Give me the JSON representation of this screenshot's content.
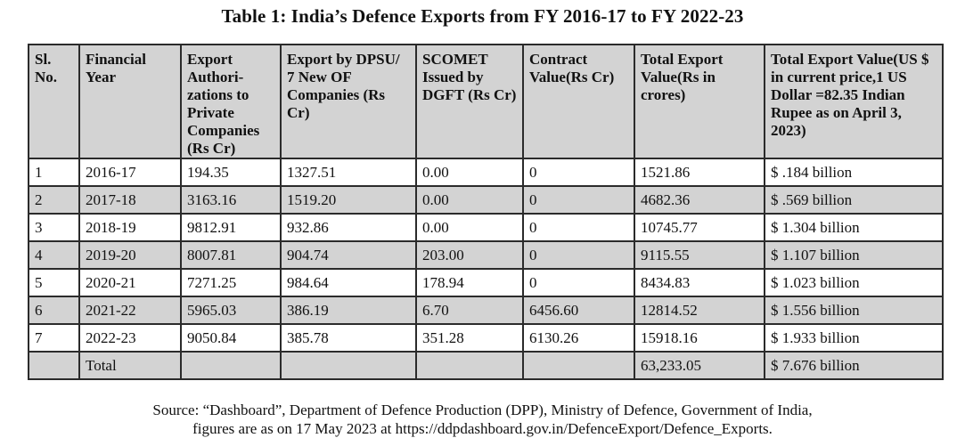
{
  "title": "Table 1: India’s Defence Exports from FY 2016-17 to FY 2022-23",
  "table": {
    "headers": [
      "Sl. No.",
      "Financial Year",
      "Export Authori-zations to Private Companies (Rs Cr)",
      "Export by DPSU/ 7 New OF Companies (Rs Cr)",
      "SCOMET Issued by DGFT (Rs Cr)",
      "Contract Value(Rs Cr)",
      "Total Export Value(Rs in crores)",
      "Total Export Value(US $ in current price,1 US Dollar =82.35 Indian Rupee as on April 3, 2023)"
    ],
    "rows": [
      [
        "1",
        "2016-17",
        "194.35",
        "1327.51",
        "0.00",
        "0",
        "1521.86",
        "$ .184 billion"
      ],
      [
        "2",
        "2017-18",
        "3163.16",
        "1519.20",
        "0.00",
        "0",
        "4682.36",
        "$ .569 billion"
      ],
      [
        "3",
        "2018-19",
        "9812.91",
        "932.86",
        "0.00",
        "0",
        "10745.77",
        "$ 1.304 billion"
      ],
      [
        "4",
        "2019-20",
        "8007.81",
        "904.74",
        "203.00",
        "0",
        "9115.55",
        "$ 1.107 billion"
      ],
      [
        "5",
        "2020-21",
        "7271.25",
        "984.64",
        "178.94",
        "0",
        "8434.83",
        "$ 1.023 billion"
      ],
      [
        "6",
        "2021-22",
        "5965.03",
        "386.19",
        "6.70",
        "6456.60",
        "12814.52",
        "$ 1.556 billion"
      ],
      [
        "7",
        "2022-23",
        "9050.84",
        "385.78",
        "351.28",
        "6130.26",
        "15918.16",
        "$ 1.933 billion"
      ],
      [
        "",
        "Total",
        "",
        "",
        "",
        "",
        "63,233.05",
        "$ 7.676 billion"
      ]
    ]
  },
  "source": {
    "line1": "Source: “Dashboard”, Department of Defence Production (DPP), Ministry of Defence, Government of India,",
    "line2": "figures are as on 17 May 2023 at https://ddpdashboard.gov.in/DefenceExport/Defence_Exports."
  }
}
